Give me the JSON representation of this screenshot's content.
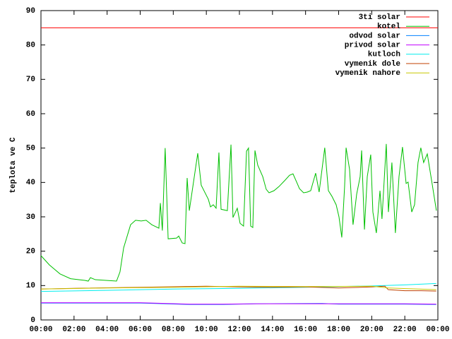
{
  "chart_data": {
    "type": "line",
    "ylabel": "teplota ve C",
    "xlim": [
      0,
      24
    ],
    "ylim": [
      0,
      90
    ],
    "yticks": [
      0,
      10,
      20,
      30,
      40,
      50,
      60,
      70,
      80,
      90
    ],
    "xticks": [
      {
        "value": 0,
        "label": "00:00"
      },
      {
        "value": 2,
        "label": "02:00"
      },
      {
        "value": 4,
        "label": "04:00"
      },
      {
        "value": 6,
        "label": "06:00"
      },
      {
        "value": 8,
        "label": "08:00"
      },
      {
        "value": 10,
        "label": "10:00"
      },
      {
        "value": 12,
        "label": "12:00"
      },
      {
        "value": 14,
        "label": "14:00"
      },
      {
        "value": 16,
        "label": "16:00"
      },
      {
        "value": 18,
        "label": "18:00"
      },
      {
        "value": 20,
        "label": "20:00"
      },
      {
        "value": 22,
        "label": "22:00"
      },
      {
        "value": 24,
        "label": "00:00"
      }
    ],
    "grid": false,
    "legend": "top-right",
    "series": [
      {
        "name": "3ti solar",
        "color": "#ff0000",
        "x": [
          0,
          24
        ],
        "values": [
          85,
          85
        ]
      },
      {
        "name": "kotel",
        "color": "#00c000",
        "x": [
          0,
          0.51,
          1.15,
          1.79,
          2.65,
          2.86,
          2.99,
          3.29,
          3.93,
          4.57,
          4.78,
          5.0,
          5.42,
          5.72,
          6.06,
          6.36,
          6.7,
          7.13,
          7.22,
          7.34,
          7.51,
          7.69,
          8.2,
          8.33,
          8.54,
          8.71,
          8.84,
          8.97,
          9.48,
          9.69,
          10.12,
          10.25,
          10.42,
          10.59,
          10.76,
          10.89,
          11.27,
          11.49,
          11.61,
          11.87,
          12.04,
          12.25,
          12.43,
          12.55,
          12.68,
          12.81,
          12.94,
          13.11,
          13.41,
          13.62,
          13.79,
          14.09,
          14.39,
          14.73,
          15.03,
          15.24,
          15.46,
          15.63,
          15.88,
          16.1,
          16.31,
          16.61,
          16.82,
          17.16,
          17.38,
          17.59,
          17.85,
          18.02,
          18.19,
          18.36,
          18.45,
          18.66,
          18.87,
          19.09,
          19.3,
          19.39,
          19.56,
          19.73,
          19.94,
          20.07,
          20.28,
          20.5,
          20.62,
          20.88,
          21.01,
          21.22,
          21.43,
          21.65,
          21.86,
          22.08,
          22.2,
          22.42,
          22.59,
          22.8,
          22.97,
          23.14,
          23.36,
          23.65,
          23.91
        ],
        "values": [
          18.7,
          16,
          13.4,
          12,
          11.5,
          11.3,
          12.3,
          11.7,
          11.5,
          11.3,
          14,
          21,
          27.7,
          29,
          28.8,
          29,
          27.7,
          26.7,
          34,
          26,
          50,
          23.6,
          23.8,
          24.4,
          22.4,
          22.2,
          41.3,
          31.8,
          48.5,
          39.2,
          35.1,
          32.9,
          33.5,
          32.5,
          48.7,
          32.2,
          31.8,
          51,
          29.8,
          32.5,
          28.1,
          27.3,
          49.1,
          50,
          27.3,
          26.9,
          49.3,
          45,
          41.7,
          38,
          37,
          37.6,
          38.8,
          40.5,
          42.1,
          42.5,
          40.1,
          38.2,
          37,
          37.2,
          37.6,
          42.7,
          37.2,
          50.1,
          37.6,
          36,
          33.5,
          30,
          24,
          38.8,
          50.1,
          43.8,
          27.7,
          36.6,
          41.7,
          49.3,
          26.3,
          41.7,
          48.1,
          31.4,
          25.3,
          37.6,
          29.4,
          51.2,
          31.4,
          45.8,
          25.3,
          41.7,
          50.3,
          39.7,
          40.1,
          31.4,
          33.5,
          45.8,
          50.1,
          45.8,
          48.3,
          39.7,
          31.8
        ]
      },
      {
        "name": "odvod solar",
        "color": "#0080ff",
        "x": [
          0,
          6,
          7.5,
          9,
          11,
          13,
          17,
          18,
          22,
          23.9
        ],
        "values": [
          4.9,
          4.9,
          4.7,
          4.5,
          4.5,
          4.7,
          4.8,
          4.6,
          4.6,
          4.5
        ]
      },
      {
        "name": "privod solar",
        "color": "#c000ff",
        "x": [
          0,
          6,
          7.5,
          9,
          11,
          13,
          17,
          18,
          22,
          23.9
        ],
        "values": [
          5,
          5,
          4.8,
          4.6,
          4.6,
          4.7,
          4.7,
          4.7,
          4.7,
          4.6
        ]
      },
      {
        "name": "kutloch",
        "color": "#00eeee",
        "x": [
          0,
          4,
          8,
          12,
          16,
          20,
          22,
          23.9
        ],
        "values": [
          8.3,
          8.6,
          9,
          9.2,
          9.5,
          9.9,
          10.2,
          10.6
        ]
      },
      {
        "name": "vymenik dole",
        "color": "#c04000",
        "x": [
          0,
          2,
          6,
          10,
          12,
          14,
          16,
          18,
          20,
          20.8,
          21,
          22,
          23,
          23.9
        ],
        "values": [
          9,
          9.2,
          9.5,
          9.8,
          9.6,
          9.5,
          9.6,
          9.3,
          9.6,
          9.8,
          8.8,
          8.5,
          8.5,
          8.4
        ]
      },
      {
        "name": "vymenik nahore",
        "color": "#c8c800",
        "x": [
          0,
          4,
          8,
          12,
          16,
          20,
          21,
          23.9
        ],
        "values": [
          9,
          9.3,
          9.5,
          9.8,
          9.7,
          9.8,
          9.3,
          8.8
        ]
      }
    ]
  }
}
